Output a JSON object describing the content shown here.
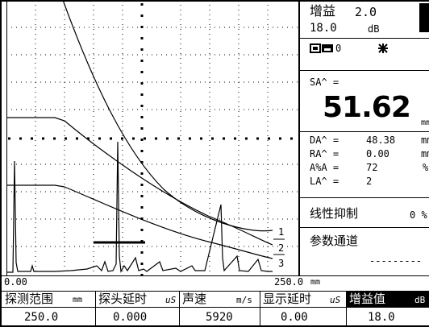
{
  "scope": {
    "curve_labels": [
      "1",
      "2",
      "3"
    ],
    "range_start": "0.00",
    "range_end": "250.0",
    "range_unit": "mm"
  },
  "side": {
    "gain_label": "增益",
    "gain_value": "2.0",
    "gain_base": "18.0",
    "gain_unit": "dB",
    "probe_channel": "0",
    "sa_label": "SA^ =",
    "sa_value": "51.62",
    "sa_unit": "mm",
    "readouts": [
      {
        "label": "DA^ =",
        "value": "48.38",
        "unit": "mm"
      },
      {
        "label": "RA^ =",
        "value": "0.00",
        "unit": "mm"
      },
      {
        "label": "A%A =",
        "value": "72",
        "unit": "%"
      },
      {
        "label": "LA^ =",
        "value": "2",
        "unit": ""
      }
    ],
    "reject_label": "线性抑制",
    "reject_value": "0 %",
    "channel_label": "参数通道",
    "channel_value": "---------"
  },
  "params": {
    "columns": [
      {
        "label": "探测范围",
        "unit": "mm",
        "value": "250.0"
      },
      {
        "label": "探头延时",
        "unit": "uS",
        "value": "0.000"
      },
      {
        "label": "声速",
        "unit": "m/s",
        "value": "5920"
      },
      {
        "label": "显示延时",
        "unit": "uS",
        "value": "0.00"
      },
      {
        "label": "增益值",
        "unit": "dB",
        "value": "18.0"
      }
    ]
  }
}
